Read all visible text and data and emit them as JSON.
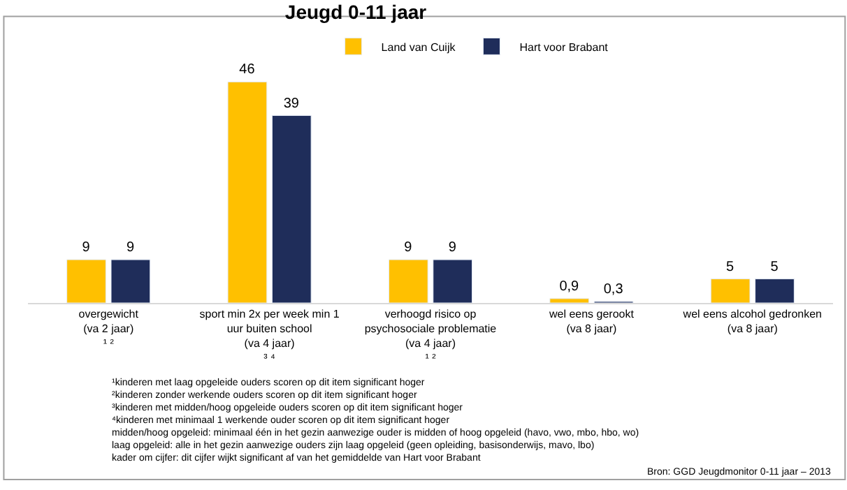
{
  "chart_data": {
    "type": "bar",
    "title": "Jeugd 0-11 jaar",
    "categories": [
      "overgewicht\n(va 2 jaar)\n¹ ²",
      "sport min 2x per week min 1\nuur buiten school\n(va 4 jaar)\n³ ⁴",
      "verhoogd risico op\npsychosociale problematie\n(va 4 jaar)\n¹ ²",
      "wel eens gerookt\n(va 8 jaar)",
      "wel eens alcohol gedronken\n(va 8 jaar)"
    ],
    "series": [
      {
        "name": "Land van Cuijk",
        "color": "#ffc000",
        "values": [
          9,
          46,
          9,
          0.9,
          5
        ],
        "value_labels": [
          "9",
          "46",
          "9",
          "0,9",
          "5"
        ]
      },
      {
        "name": "Hart voor Brabant",
        "color": "#1f2d5a",
        "values": [
          9,
          39,
          9,
          0.3,
          5
        ],
        "value_labels": [
          "9",
          "39",
          "9",
          "0,3",
          "5"
        ]
      }
    ],
    "legend": "top",
    "annotations": [
      "¹kinderen met laag opgeleide ouders scoren op dit item significant hoger",
      "²kinderen zonder werkende ouders scoren op dit item significant hoger",
      "³kinderen met midden/hoog opgeleide ouders scoren op dit item significant hoger",
      "⁴kinderen met minimaal 1 werkende ouder scoren op dit item significant hoger",
      "midden/hoog opgeleid: minimaal één in het gezin aanwezige ouder is midden of hoog opgeleid (havo, vwo, mbo, hbo, wo)",
      "laag opgeleid: alle in het gezin aanwezige ouders zijn laag opgeleid (geen opleiding, basisonderwijs, mavo, lbo)",
      "kader om cijfer: dit cijfer wijkt significant af van het gemiddelde van Hart voor Brabant",
      "Bron: GGD Jeugdmonitor 0-11 jaar – 2013"
    ]
  }
}
